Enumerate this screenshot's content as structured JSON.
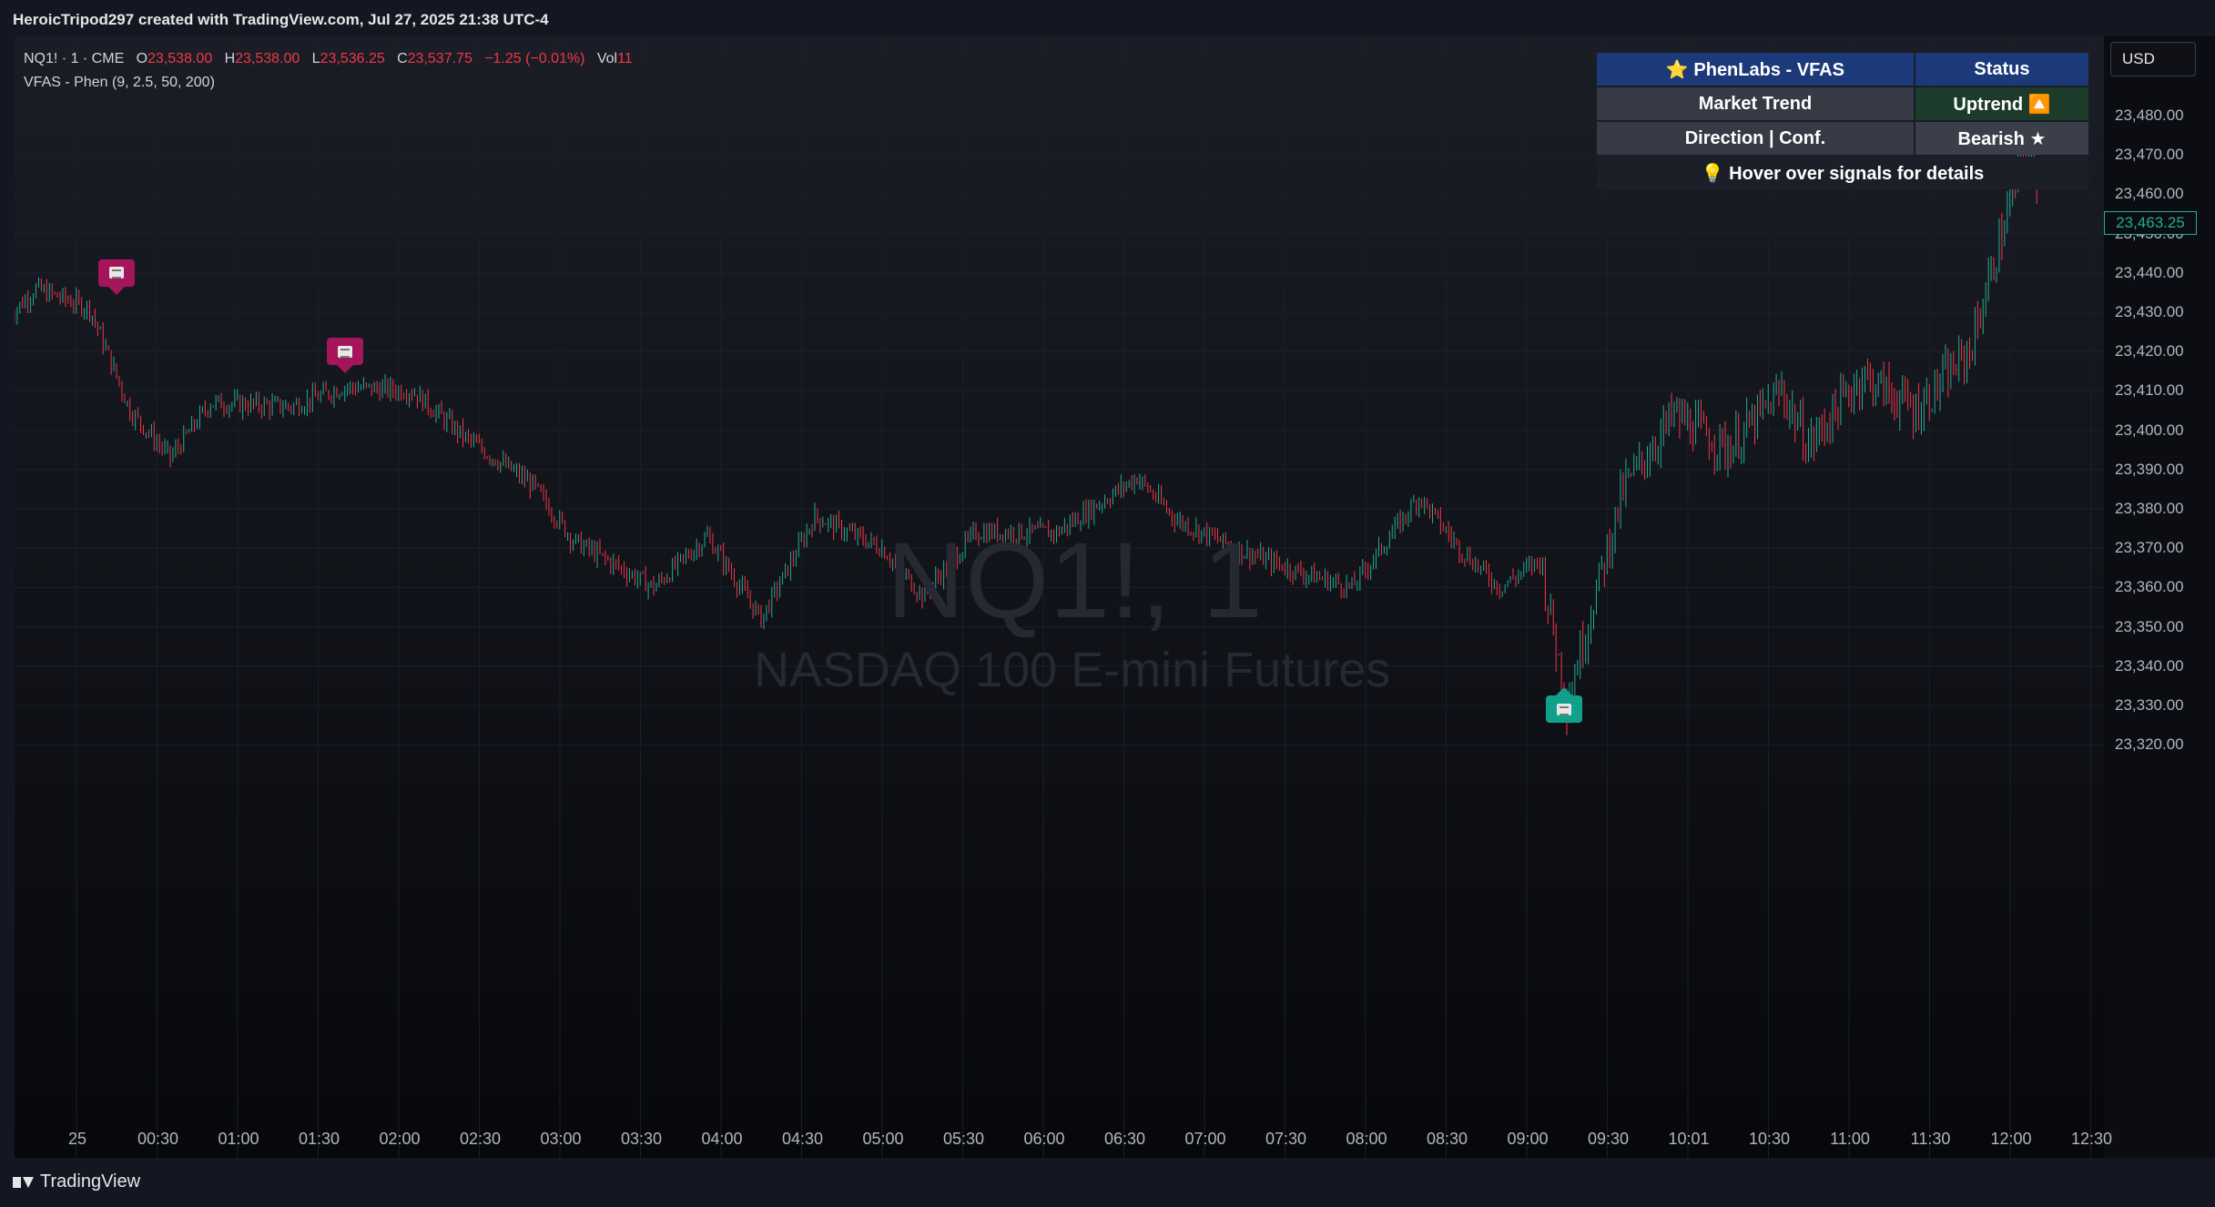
{
  "header": {
    "caption": "HeroicTripod297 created with TradingView.com, Jul 27, 2025 21:38 UTC-4"
  },
  "legend": {
    "symbol_line": "NQ1! · 1 · CME",
    "o_label": "O",
    "o_value": "23,538.00",
    "h_label": "H",
    "h_value": "23,538.00",
    "l_label": "L",
    "l_value": "23,536.25",
    "c_label": "C",
    "c_value": "23,537.75",
    "change": "−1.25 (−0.01%)",
    "vol_label": "Vol",
    "vol_value": "11",
    "indicator_line": "VFAS - Phen (9, 2.5, 50, 200)"
  },
  "watermark": {
    "symbol": "NQ1!, 1",
    "description": "NASDAQ 100 E-mini Futures"
  },
  "currency": "USD",
  "last_price": "23,463.25",
  "status_table": {
    "title": "⭐ PhenLabs - VFAS",
    "status_header": "Status",
    "rows": [
      {
        "label": "Market Trend",
        "value": "Uptrend 🔼"
      },
      {
        "label": "Direction | Conf.",
        "value": "Bearish ★"
      }
    ],
    "footer": "💡 Hover over signals for details"
  },
  "colors": {
    "up": "#22ab94",
    "down": "#f23645",
    "sell_signal": "#a5155c",
    "buy_signal": "#11a08a",
    "table_header": "#1c3a7a",
    "uptrend_cell": "#1d3b2a"
  },
  "y_axis": {
    "min": 23315,
    "max": 23485,
    "ticks": [
      "23,480.00",
      "23,470.00",
      "23,460.00",
      "23,450.00",
      "23,440.00",
      "23,430.00",
      "23,420.00",
      "23,410.00",
      "23,400.00",
      "23,390.00",
      "23,380.00",
      "23,370.00",
      "23,360.00",
      "23,350.00",
      "23,340.00",
      "23,330.00",
      "23,320.00"
    ]
  },
  "x_axis": {
    "ticks": [
      "25",
      "00:30",
      "01:00",
      "01:30",
      "02:00",
      "02:30",
      "03:00",
      "03:30",
      "04:00",
      "04:30",
      "05:00",
      "05:30",
      "06:00",
      "06:30",
      "07:00",
      "07:30",
      "08:00",
      "08:30",
      "09:00",
      "09:30",
      "10:01",
      "10:30",
      "11:00",
      "11:30",
      "12:00",
      "12:30"
    ]
  },
  "chart_data": {
    "type": "ohlc",
    "symbol": "NQ1!",
    "interval": "1",
    "ylim": [
      23315,
      23485
    ],
    "key_points": [
      {
        "t": "00:00",
        "price": 23429
      },
      {
        "t": "00:10",
        "price": 23436
      },
      {
        "t": "00:30",
        "price": 23431
      },
      {
        "t": "00:45",
        "price": 23405
      },
      {
        "t": "01:00",
        "price": 23393
      },
      {
        "t": "01:15",
        "price": 23407
      },
      {
        "t": "01:45",
        "price": 23406
      },
      {
        "t": "02:05",
        "price": 23411
      },
      {
        "t": "02:30",
        "price": 23410
      },
      {
        "t": "02:50",
        "price": 23398
      },
      {
        "t": "03:15",
        "price": 23386
      },
      {
        "t": "03:30",
        "price": 23372
      },
      {
        "t": "04:00",
        "price": 23360
      },
      {
        "t": "04:20",
        "price": 23373
      },
      {
        "t": "04:40",
        "price": 23352
      },
      {
        "t": "05:00",
        "price": 23378
      },
      {
        "t": "05:25",
        "price": 23370
      },
      {
        "t": "05:40",
        "price": 23358
      },
      {
        "t": "06:00",
        "price": 23374
      },
      {
        "t": "06:30",
        "price": 23374
      },
      {
        "t": "07:00",
        "price": 23388
      },
      {
        "t": "07:15",
        "price": 23377
      },
      {
        "t": "07:40",
        "price": 23369
      },
      {
        "t": "08:00",
        "price": 23364
      },
      {
        "t": "08:20",
        "price": 23360
      },
      {
        "t": "08:45",
        "price": 23383
      },
      {
        "t": "09:00",
        "price": 23370
      },
      {
        "t": "09:15",
        "price": 23360
      },
      {
        "t": "09:30",
        "price": 23367
      },
      {
        "t": "09:40",
        "price": 23331
      },
      {
        "t": "10:01",
        "price": 23385
      },
      {
        "t": "10:20",
        "price": 23404
      },
      {
        "t": "10:40",
        "price": 23395
      },
      {
        "t": "11:00",
        "price": 23410
      },
      {
        "t": "11:10",
        "price": 23396
      },
      {
        "t": "11:30",
        "price": 23414
      },
      {
        "t": "11:50",
        "price": 23405
      },
      {
        "t": "12:10",
        "price": 23420
      },
      {
        "t": "12:20",
        "price": 23445
      },
      {
        "t": "12:30",
        "price": 23470
      },
      {
        "t": "12:35",
        "price": 23463
      }
    ],
    "signals": [
      {
        "type": "sell",
        "t": "00:40",
        "price": 23440
      },
      {
        "type": "sell",
        "t": "02:05",
        "price": 23420
      },
      {
        "type": "buy",
        "t": "09:39",
        "price": 23329
      }
    ]
  }
}
